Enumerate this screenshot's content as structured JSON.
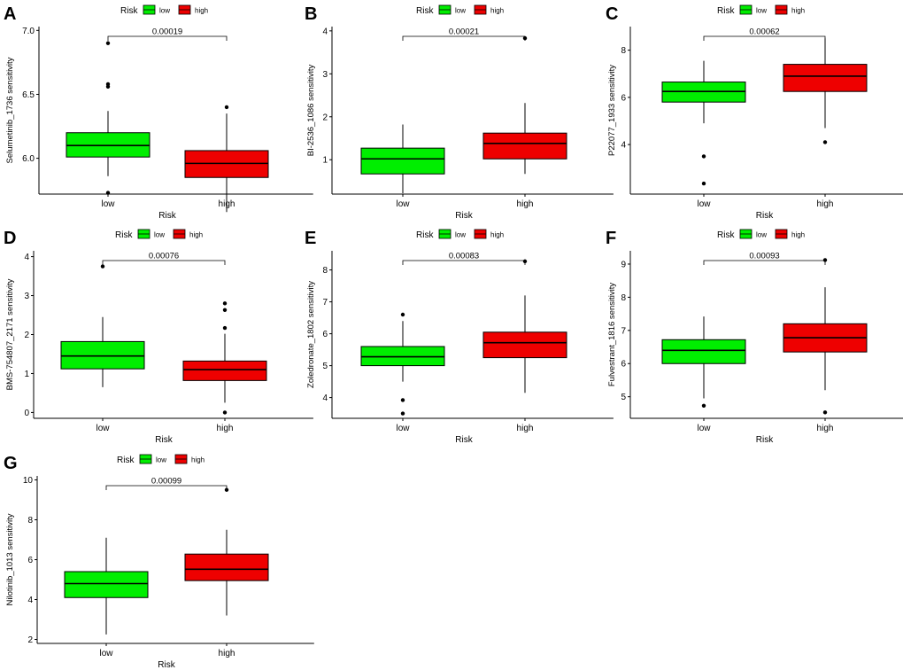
{
  "colors": {
    "low": "#00ee00",
    "high": "#ee0000",
    "axis": "#000000",
    "background": "#ffffff"
  },
  "chart_data": [
    {
      "panel_label": "A",
      "type": "box",
      "title": "",
      "xlabel": "Risk",
      "ylabel": "Selumetinib_1736 sensitivity",
      "ylim": [
        5.72,
        7.03
      ],
      "yticks": [
        6.0,
        6.5,
        7.0
      ],
      "ytick_labels": [
        "6.0",
        "6.5",
        "7.0"
      ],
      "legend": {
        "title": "Risk",
        "items": [
          "low",
          "high"
        ],
        "placement": "top"
      },
      "categories": [
        "low",
        "high"
      ],
      "boxes": [
        {
          "group": "low",
          "min": 5.86,
          "q1": 6.01,
          "median": 6.1,
          "q3": 6.2,
          "max": 6.37,
          "outliers": [
            6.9,
            6.58,
            6.56,
            5.73
          ]
        },
        {
          "group": "high",
          "min": 5.58,
          "q1": 5.85,
          "median": 5.96,
          "q3": 6.06,
          "max": 6.35,
          "outliers": [
            6.4
          ]
        }
      ],
      "p_value": "0.00019"
    },
    {
      "panel_label": "B",
      "type": "box",
      "title": "",
      "xlabel": "Risk",
      "ylabel": "BI-2536_1086 sensitivity",
      "ylim": [
        0.2,
        4.1
      ],
      "yticks": [
        1,
        2,
        3,
        4
      ],
      "ytick_labels": [
        "1",
        "2",
        "3",
        "4"
      ],
      "legend": {
        "title": "Risk",
        "items": [
          "low",
          "high"
        ],
        "placement": "top"
      },
      "categories": [
        "low",
        "high"
      ],
      "boxes": [
        {
          "group": "low",
          "min": 0.22,
          "q1": 0.67,
          "median": 1.02,
          "q3": 1.27,
          "max": 1.82,
          "outliers": []
        },
        {
          "group": "high",
          "min": 0.67,
          "q1": 1.02,
          "median": 1.38,
          "q3": 1.62,
          "max": 2.32,
          "outliers": [
            3.83
          ]
        }
      ],
      "p_value": "0.00021"
    },
    {
      "panel_label": "C",
      "type": "box",
      "title": "",
      "xlabel": "Risk",
      "ylabel": "P22077_1933 sensitivity",
      "ylim": [
        1.9,
        9.0
      ],
      "yticks": [
        4,
        6,
        8
      ],
      "ytick_labels": [
        "4",
        "6",
        "8"
      ],
      "legend": {
        "title": "Risk",
        "items": [
          "low",
          "high"
        ],
        "placement": "top"
      },
      "categories": [
        "low",
        "high"
      ],
      "boxes": [
        {
          "group": "low",
          "min": 4.9,
          "q1": 5.8,
          "median": 6.25,
          "q3": 6.65,
          "max": 7.55,
          "outliers": [
            3.5,
            2.35
          ]
        },
        {
          "group": "high",
          "min": 4.7,
          "q1": 6.25,
          "median": 6.9,
          "q3": 7.4,
          "max": 8.5,
          "outliers": [
            4.1
          ]
        }
      ],
      "p_value": "0.00062"
    },
    {
      "panel_label": "D",
      "type": "box",
      "title": "",
      "xlabel": "Risk",
      "ylabel": "BMS-754807_2171 sensitivity",
      "ylim": [
        -0.15,
        4.15
      ],
      "yticks": [
        0,
        1,
        2,
        3,
        4
      ],
      "ytick_labels": [
        "0",
        "1",
        "2",
        "3",
        "4"
      ],
      "legend": {
        "title": "Risk",
        "items": [
          "low",
          "high"
        ],
        "placement": "top"
      },
      "categories": [
        "low",
        "high"
      ],
      "boxes": [
        {
          "group": "low",
          "min": 0.65,
          "q1": 1.12,
          "median": 1.45,
          "q3": 1.82,
          "max": 2.45,
          "outliers": [
            3.75
          ]
        },
        {
          "group": "high",
          "min": 0.25,
          "q1": 0.82,
          "median": 1.1,
          "q3": 1.32,
          "max": 2.02,
          "outliers": [
            2.8,
            2.63,
            2.17,
            0.0
          ]
        }
      ],
      "p_value": "0.00076"
    },
    {
      "panel_label": "E",
      "type": "box",
      "title": "",
      "xlabel": "Risk",
      "ylabel": "Zoledronate_1802 sensitivity",
      "ylim": [
        3.35,
        8.6
      ],
      "yticks": [
        4,
        5,
        6,
        7,
        8
      ],
      "ytick_labels": [
        "4",
        "5",
        "6",
        "7",
        "8"
      ],
      "legend": {
        "title": "Risk",
        "items": [
          "low",
          "high"
        ],
        "placement": "top"
      },
      "categories": [
        "low",
        "high"
      ],
      "boxes": [
        {
          "group": "low",
          "min": 4.5,
          "q1": 5.0,
          "median": 5.28,
          "q3": 5.6,
          "max": 6.4,
          "outliers": [
            6.6,
            3.92,
            3.5
          ]
        },
        {
          "group": "high",
          "min": 4.15,
          "q1": 5.25,
          "median": 5.72,
          "q3": 6.05,
          "max": 7.2,
          "outliers": [
            8.27
          ]
        }
      ],
      "p_value": "0.00083"
    },
    {
      "panel_label": "F",
      "type": "box",
      "title": "",
      "xlabel": "Risk",
      "ylabel": "Fulvestrant_1816 sensitivity",
      "ylim": [
        4.35,
        9.4
      ],
      "yticks": [
        5,
        6,
        7,
        8,
        9
      ],
      "ytick_labels": [
        "5",
        "6",
        "7",
        "8",
        "9"
      ],
      "legend": {
        "title": "Risk",
        "items": [
          "low",
          "high"
        ],
        "placement": "top"
      },
      "categories": [
        "low",
        "high"
      ],
      "boxes": [
        {
          "group": "low",
          "min": 4.95,
          "q1": 6.0,
          "median": 6.4,
          "q3": 6.72,
          "max": 7.42,
          "outliers": [
            4.73
          ]
        },
        {
          "group": "high",
          "min": 5.2,
          "q1": 6.35,
          "median": 6.78,
          "q3": 7.2,
          "max": 8.3,
          "outliers": [
            9.12,
            4.53
          ]
        }
      ],
      "p_value": "0.00093"
    },
    {
      "panel_label": "G",
      "type": "box",
      "title": "",
      "xlabel": "Risk",
      "ylabel": "Nilotinib_1013 sensitivity",
      "ylim": [
        1.8,
        10.2
      ],
      "yticks": [
        2,
        4,
        6,
        8,
        10
      ],
      "ytick_labels": [
        "2",
        "4",
        "6",
        "8",
        "10"
      ],
      "legend": {
        "title": "Risk",
        "items": [
          "low",
          "high"
        ],
        "placement": "top"
      },
      "categories": [
        "low",
        "high"
      ],
      "boxes": [
        {
          "group": "low",
          "min": 2.25,
          "q1": 4.1,
          "median": 4.8,
          "q3": 5.4,
          "max": 7.1,
          "outliers": []
        },
        {
          "group": "high",
          "min": 3.2,
          "q1": 4.95,
          "median": 5.52,
          "q3": 6.28,
          "max": 7.5,
          "outliers": [
            9.5
          ]
        }
      ],
      "p_value": "0.00099"
    }
  ]
}
